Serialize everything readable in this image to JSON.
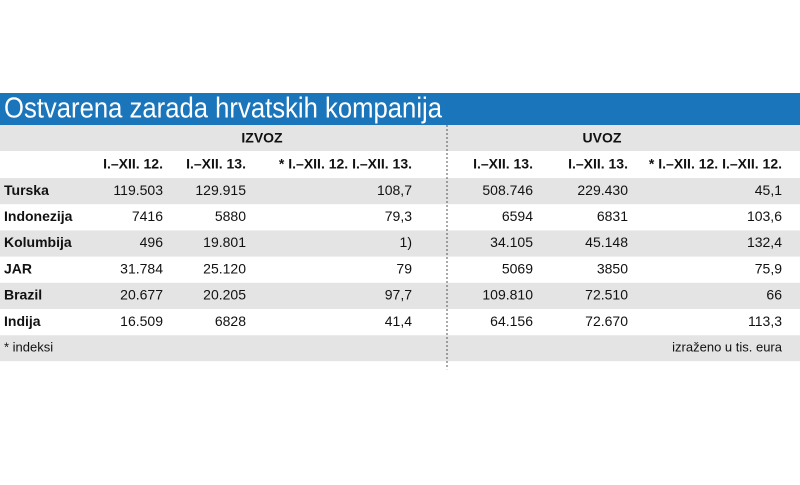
{
  "header": {
    "title": "Ostvarena zarada hrvatskih kompanija"
  },
  "table": {
    "groups": [
      "IZVOZ",
      "UVOZ"
    ],
    "columns": [
      "I.–XII. 12.",
      "I.–XII. 13.",
      "* I.–XII. 12. I.–XII. 13.",
      "I.–XII. 13.",
      "I.–XII. 13.",
      "* I.–XII. 12. I.–XII. 12."
    ],
    "rows": [
      [
        "Turska",
        "119.503",
        "129.915",
        "108,7",
        "508.746",
        "229.430",
        "45,1"
      ],
      [
        "Indonezija",
        "7416",
        "5880",
        "79,3",
        "6594",
        "6831",
        "103,6"
      ],
      [
        "Kolumbija",
        "496",
        "19.801",
        "1)",
        "34.105",
        "45.148",
        "132,4"
      ],
      [
        "JAR",
        "31.784",
        "25.120",
        "79",
        "5069",
        "3850",
        "75,9"
      ],
      [
        "Brazil",
        "20.677",
        "20.205",
        "97,7",
        "109.810",
        "72.510",
        "66"
      ],
      [
        "Indija",
        "16.509",
        "6828",
        "41,4",
        "64.156",
        "72.670",
        "113,3"
      ]
    ]
  },
  "footnote": "* indeksi",
  "unit_note": "izraženo u tis. eura"
}
